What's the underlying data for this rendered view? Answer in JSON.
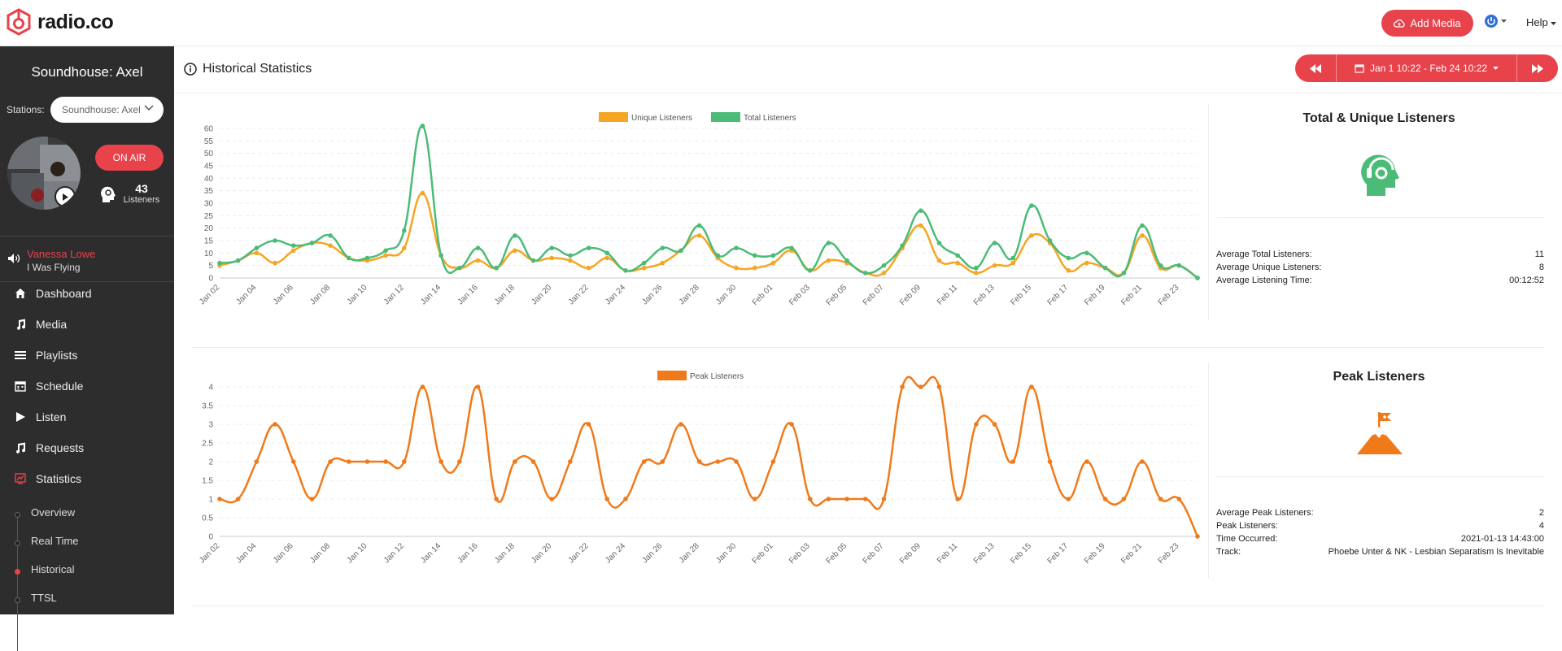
{
  "brand": {
    "name": "radio.co",
    "color": "#e8424b"
  },
  "header": {
    "add_media_label": "Add Media",
    "help_label": "Help"
  },
  "sidebar": {
    "station_title": "Soundhouse: Axel",
    "stations_label": "Stations:",
    "station_select_value": "Soundhouse: Axel",
    "on_air_label": "ON AIR",
    "listeners_count": "43",
    "listeners_label": "Listeners",
    "now_playing": {
      "artist": "Vanessa Lowe",
      "track": "I Was Flying"
    },
    "nav": [
      {
        "label": "Dashboard",
        "icon": "home-icon"
      },
      {
        "label": "Media",
        "icon": "music-note-icon"
      },
      {
        "label": "Playlists",
        "icon": "list-icon"
      },
      {
        "label": "Schedule",
        "icon": "calendar-icon"
      },
      {
        "label": "Listen",
        "icon": "play-icon"
      },
      {
        "label": "Requests",
        "icon": "music-notes-icon"
      },
      {
        "label": "Statistics",
        "icon": "statistics-icon"
      }
    ],
    "sub_nav": [
      "Overview",
      "Real Time",
      "Historical",
      "TTSL"
    ],
    "active_sub_nav": "Historical"
  },
  "page": {
    "title": "Historical Statistics",
    "date_range": "Jan 1 10:22 - Feb 24 10:22"
  },
  "colors": {
    "unique": "#f5a623",
    "total": "#4cbb78",
    "peak": "#f07a1a"
  },
  "panels": {
    "listeners": {
      "title": "Total & Unique Listeners",
      "icon": "headphones-head-icon",
      "stats": [
        {
          "label": "Average Total Listeners:",
          "value": "11"
        },
        {
          "label": "Average Unique Listeners:",
          "value": "8"
        },
        {
          "label": "Average Listening Time:",
          "value": "00:12:52"
        }
      ]
    },
    "peak": {
      "title": "Peak Listeners",
      "icon": "mountain-flag-icon",
      "stats": [
        {
          "label": "Average Peak Listeners:",
          "value": "2"
        },
        {
          "label": "Peak Listeners:",
          "value": "4"
        },
        {
          "label": "Time Occurred:",
          "value": "2021-01-13 14:43:00"
        },
        {
          "label": "Track:",
          "value": "Phoebe Unter & NK - Lesbian Separatism Is Inevitable"
        }
      ]
    }
  },
  "chart_data": [
    {
      "type": "line",
      "legend": [
        "Unique Listeners",
        "Total Listeners"
      ],
      "categories": [
        "Jan 02",
        "Jan 03",
        "Jan 04",
        "Jan 05",
        "Jan 06",
        "Jan 07",
        "Jan 08",
        "Jan 09",
        "Jan 10",
        "Jan 11",
        "Jan 12",
        "Jan 13",
        "Jan 14",
        "Jan 15",
        "Jan 16",
        "Jan 17",
        "Jan 18",
        "Jan 19",
        "Jan 20",
        "Jan 21",
        "Jan 22",
        "Jan 23",
        "Jan 24",
        "Jan 25",
        "Jan 26",
        "Jan 27",
        "Jan 28",
        "Jan 29",
        "Jan 30",
        "Jan 31",
        "Feb 01",
        "Feb 02",
        "Feb 03",
        "Feb 04",
        "Feb 05",
        "Feb 06",
        "Feb 07",
        "Feb 08",
        "Feb 09",
        "Feb 10",
        "Feb 11",
        "Feb 12",
        "Feb 13",
        "Feb 14",
        "Feb 15",
        "Feb 16",
        "Feb 17",
        "Feb 18",
        "Feb 19",
        "Feb 20",
        "Feb 21",
        "Feb 22",
        "Feb 23",
        "Feb 24"
      ],
      "tick_labels": [
        "Jan 02",
        "Jan 04",
        "Jan 06",
        "Jan 08",
        "Jan 10",
        "Jan 12",
        "Jan 14",
        "Jan 16",
        "Jan 18",
        "Jan 20",
        "Jan 22",
        "Jan 24",
        "Jan 26",
        "Jan 28",
        "Jan 30",
        "Feb 01",
        "Feb 03",
        "Feb 05",
        "Feb 07",
        "Feb 09",
        "Feb 11",
        "Feb 13",
        "Feb 15",
        "Feb 17",
        "Feb 19",
        "Feb 21",
        "Feb 23"
      ],
      "series": [
        {
          "name": "Unique Listeners",
          "values": [
            5,
            7,
            10,
            6,
            11,
            14,
            13,
            8,
            7,
            9,
            12,
            34,
            9,
            4,
            7,
            4,
            11,
            7,
            8,
            7,
            4,
            8,
            3,
            4,
            6,
            11,
            17,
            8,
            4,
            4,
            6,
            11,
            3,
            7,
            6,
            2,
            2,
            12,
            21,
            7,
            6,
            2,
            5,
            6,
            17,
            14,
            3,
            6,
            4,
            2,
            17,
            4,
            5,
            0
          ]
        },
        {
          "name": "Total Listeners",
          "values": [
            6,
            7,
            12,
            15,
            13,
            14,
            17,
            8,
            8,
            11,
            19,
            61,
            9,
            4,
            12,
            4,
            17,
            7,
            12,
            9,
            12,
            10,
            3,
            6,
            12,
            11,
            21,
            9,
            12,
            9,
            9,
            12,
            3,
            14,
            7,
            2,
            5,
            13,
            27,
            14,
            9,
            4,
            14,
            8,
            29,
            15,
            8,
            10,
            4,
            2,
            21,
            5,
            5,
            0
          ]
        }
      ],
      "ylim": [
        0,
        60
      ],
      "yticks": [
        0,
        5,
        10,
        15,
        20,
        25,
        30,
        35,
        40,
        45,
        50,
        55,
        60
      ]
    },
    {
      "type": "line",
      "legend": [
        "Peak Listeners"
      ],
      "categories": [
        "Jan 02",
        "Jan 03",
        "Jan 04",
        "Jan 05",
        "Jan 06",
        "Jan 07",
        "Jan 08",
        "Jan 09",
        "Jan 10",
        "Jan 11",
        "Jan 12",
        "Jan 13",
        "Jan 14",
        "Jan 15",
        "Jan 16",
        "Jan 17",
        "Jan 18",
        "Jan 19",
        "Jan 20",
        "Jan 21",
        "Jan 22",
        "Jan 23",
        "Jan 24",
        "Jan 25",
        "Jan 26",
        "Jan 27",
        "Jan 28",
        "Jan 29",
        "Jan 30",
        "Jan 31",
        "Feb 01",
        "Feb 02",
        "Feb 03",
        "Feb 04",
        "Feb 05",
        "Feb 06",
        "Feb 07",
        "Feb 08",
        "Feb 09",
        "Feb 10",
        "Feb 11",
        "Feb 12",
        "Feb 13",
        "Feb 14",
        "Feb 15",
        "Feb 16",
        "Feb 17",
        "Feb 18",
        "Feb 19",
        "Feb 20",
        "Feb 21",
        "Feb 22",
        "Feb 23",
        "Feb 24"
      ],
      "tick_labels": [
        "Jan 02",
        "Jan 04",
        "Jan 06",
        "Jan 08",
        "Jan 10",
        "Jan 12",
        "Jan 14",
        "Jan 16",
        "Jan 18",
        "Jan 20",
        "Jan 22",
        "Jan 24",
        "Jan 26",
        "Jan 28",
        "Jan 30",
        "Feb 01",
        "Feb 03",
        "Feb 05",
        "Feb 07",
        "Feb 09",
        "Feb 11",
        "Feb 13",
        "Feb 15",
        "Feb 17",
        "Feb 19",
        "Feb 21",
        "Feb 23"
      ],
      "series": [
        {
          "name": "Peak Listeners",
          "values": [
            1,
            1,
            2,
            3,
            2,
            1,
            2,
            2,
            2,
            2,
            2,
            4,
            2,
            2,
            4,
            1,
            2,
            2,
            1,
            2,
            3,
            1,
            1,
            2,
            2,
            3,
            2,
            2,
            2,
            1,
            2,
            3,
            1,
            1,
            1,
            1,
            1,
            4,
            4,
            4,
            1,
            3,
            3,
            2,
            4,
            2,
            1,
            2,
            1,
            1,
            2,
            1,
            1,
            0
          ]
        }
      ],
      "ylim": [
        0,
        4
      ],
      "yticks": [
        0,
        0.5,
        1,
        1.5,
        2,
        2.5,
        3,
        3.5,
        4
      ]
    }
  ]
}
